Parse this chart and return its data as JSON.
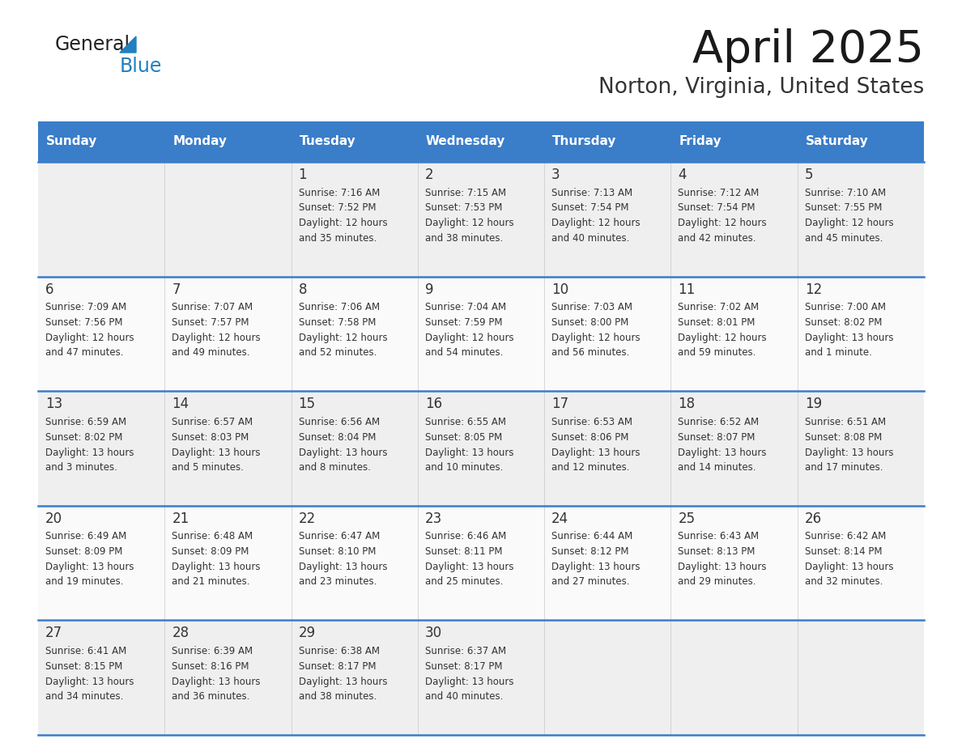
{
  "title": "April 2025",
  "subtitle": "Norton, Virginia, United States",
  "header_bg": "#3A7DC9",
  "header_text_color": "#FFFFFF",
  "row_bg_odd": "#EFEFEF",
  "row_bg_even": "#FAFAFA",
  "border_color": "#3A7DC9",
  "text_color": "#333333",
  "days_of_week": [
    "Sunday",
    "Monday",
    "Tuesday",
    "Wednesday",
    "Thursday",
    "Friday",
    "Saturday"
  ],
  "weeks": [
    [
      {
        "day": null,
        "sunrise": null,
        "sunset": null,
        "daylight": null
      },
      {
        "day": null,
        "sunrise": null,
        "sunset": null,
        "daylight": null
      },
      {
        "day": 1,
        "sunrise": "7:16 AM",
        "sunset": "7:52 PM",
        "daylight": "12 hours and 35 minutes."
      },
      {
        "day": 2,
        "sunrise": "7:15 AM",
        "sunset": "7:53 PM",
        "daylight": "12 hours and 38 minutes."
      },
      {
        "day": 3,
        "sunrise": "7:13 AM",
        "sunset": "7:54 PM",
        "daylight": "12 hours and 40 minutes."
      },
      {
        "day": 4,
        "sunrise": "7:12 AM",
        "sunset": "7:54 PM",
        "daylight": "12 hours and 42 minutes."
      },
      {
        "day": 5,
        "sunrise": "7:10 AM",
        "sunset": "7:55 PM",
        "daylight": "12 hours and 45 minutes."
      }
    ],
    [
      {
        "day": 6,
        "sunrise": "7:09 AM",
        "sunset": "7:56 PM",
        "daylight": "12 hours and 47 minutes."
      },
      {
        "day": 7,
        "sunrise": "7:07 AM",
        "sunset": "7:57 PM",
        "daylight": "12 hours and 49 minutes."
      },
      {
        "day": 8,
        "sunrise": "7:06 AM",
        "sunset": "7:58 PM",
        "daylight": "12 hours and 52 minutes."
      },
      {
        "day": 9,
        "sunrise": "7:04 AM",
        "sunset": "7:59 PM",
        "daylight": "12 hours and 54 minutes."
      },
      {
        "day": 10,
        "sunrise": "7:03 AM",
        "sunset": "8:00 PM",
        "daylight": "12 hours and 56 minutes."
      },
      {
        "day": 11,
        "sunrise": "7:02 AM",
        "sunset": "8:01 PM",
        "daylight": "12 hours and 59 minutes."
      },
      {
        "day": 12,
        "sunrise": "7:00 AM",
        "sunset": "8:02 PM",
        "daylight": "13 hours and 1 minute."
      }
    ],
    [
      {
        "day": 13,
        "sunrise": "6:59 AM",
        "sunset": "8:02 PM",
        "daylight": "13 hours and 3 minutes."
      },
      {
        "day": 14,
        "sunrise": "6:57 AM",
        "sunset": "8:03 PM",
        "daylight": "13 hours and 5 minutes."
      },
      {
        "day": 15,
        "sunrise": "6:56 AM",
        "sunset": "8:04 PM",
        "daylight": "13 hours and 8 minutes."
      },
      {
        "day": 16,
        "sunrise": "6:55 AM",
        "sunset": "8:05 PM",
        "daylight": "13 hours and 10 minutes."
      },
      {
        "day": 17,
        "sunrise": "6:53 AM",
        "sunset": "8:06 PM",
        "daylight": "13 hours and 12 minutes."
      },
      {
        "day": 18,
        "sunrise": "6:52 AM",
        "sunset": "8:07 PM",
        "daylight": "13 hours and 14 minutes."
      },
      {
        "day": 19,
        "sunrise": "6:51 AM",
        "sunset": "8:08 PM",
        "daylight": "13 hours and 17 minutes."
      }
    ],
    [
      {
        "day": 20,
        "sunrise": "6:49 AM",
        "sunset": "8:09 PM",
        "daylight": "13 hours and 19 minutes."
      },
      {
        "day": 21,
        "sunrise": "6:48 AM",
        "sunset": "8:09 PM",
        "daylight": "13 hours and 21 minutes."
      },
      {
        "day": 22,
        "sunrise": "6:47 AM",
        "sunset": "8:10 PM",
        "daylight": "13 hours and 23 minutes."
      },
      {
        "day": 23,
        "sunrise": "6:46 AM",
        "sunset": "8:11 PM",
        "daylight": "13 hours and 25 minutes."
      },
      {
        "day": 24,
        "sunrise": "6:44 AM",
        "sunset": "8:12 PM",
        "daylight": "13 hours and 27 minutes."
      },
      {
        "day": 25,
        "sunrise": "6:43 AM",
        "sunset": "8:13 PM",
        "daylight": "13 hours and 29 minutes."
      },
      {
        "day": 26,
        "sunrise": "6:42 AM",
        "sunset": "8:14 PM",
        "daylight": "13 hours and 32 minutes."
      }
    ],
    [
      {
        "day": 27,
        "sunrise": "6:41 AM",
        "sunset": "8:15 PM",
        "daylight": "13 hours and 34 minutes."
      },
      {
        "day": 28,
        "sunrise": "6:39 AM",
        "sunset": "8:16 PM",
        "daylight": "13 hours and 36 minutes."
      },
      {
        "day": 29,
        "sunrise": "6:38 AM",
        "sunset": "8:17 PM",
        "daylight": "13 hours and 38 minutes."
      },
      {
        "day": 30,
        "sunrise": "6:37 AM",
        "sunset": "8:17 PM",
        "daylight": "13 hours and 40 minutes."
      },
      {
        "day": null,
        "sunrise": null,
        "sunset": null,
        "daylight": null
      },
      {
        "day": null,
        "sunrise": null,
        "sunset": null,
        "daylight": null
      },
      {
        "day": null,
        "sunrise": null,
        "sunset": null,
        "daylight": null
      }
    ]
  ],
  "logo_text_general": "General",
  "logo_text_blue": "Blue",
  "logo_color_general": "#222222",
  "logo_color_blue": "#2080C0",
  "logo_triangle_color": "#2080C0"
}
